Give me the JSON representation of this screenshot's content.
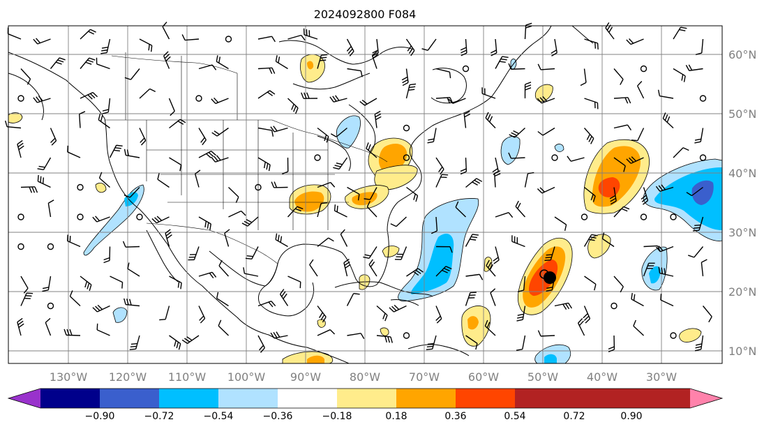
{
  "title": "2024092800 F084",
  "map": {
    "longitude_labels": [
      "130°W",
      "120°W",
      "110°W",
      "100°W",
      "90°W",
      "80°W",
      "70°W",
      "60°W",
      "50°W",
      "40°W",
      "30°W"
    ],
    "latitude_labels": [
      "60°N",
      "50°N",
      "40°N",
      "30°N",
      "20°N",
      "10°N"
    ],
    "gridlines": true
  },
  "colorbar": {
    "ticks": [
      "−0.90",
      "−0.72",
      "−0.54",
      "−0.36",
      "−0.18",
      "0.18",
      "0.36",
      "0.54",
      "0.72",
      "0.90"
    ],
    "colors": [
      "#9932cc",
      "#00008b",
      "#3a5fcd",
      "#00bfff",
      "#b0e2ff",
      "#ffffff",
      "#ffec8b",
      "#ffa500",
      "#ff4500",
      "#b22222",
      "#ff82ab"
    ],
    "extend": "both"
  },
  "colors": {
    "lt_blue": "#b0e2ff",
    "blue": "#00bfff",
    "royal": "#3a5fcd",
    "yellow": "#ffec8b",
    "orange": "#ffa500",
    "red": "#ff4500"
  }
}
